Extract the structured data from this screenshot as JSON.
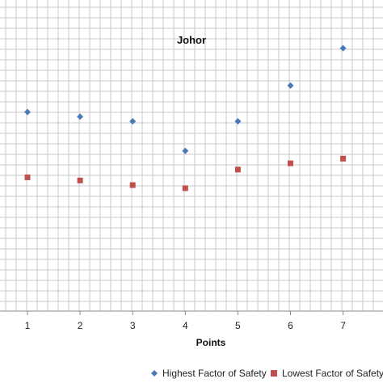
{
  "chart_data": {
    "type": "scatter",
    "title": "Johor",
    "xlabel": "Points",
    "ylabel": "",
    "x": [
      1,
      2,
      3,
      4,
      5,
      6,
      7
    ],
    "xlim": [
      0.5,
      7.5
    ],
    "ylim": [
      0,
      1
    ],
    "grid": true,
    "legend_position": "bottom",
    "series": [
      {
        "name": "Highest Factor of Safety",
        "marker": "diamond",
        "color": "#4a7ab5",
        "values": [
          0.64,
          0.625,
          0.61,
          0.515,
          0.61,
          0.725,
          0.845
        ]
      },
      {
        "name": "Lowest Factor of Safety",
        "marker": "square",
        "color": "#c0504d",
        "values": [
          0.43,
          0.42,
          0.405,
          0.395,
          0.455,
          0.475,
          0.49
        ]
      }
    ]
  }
}
